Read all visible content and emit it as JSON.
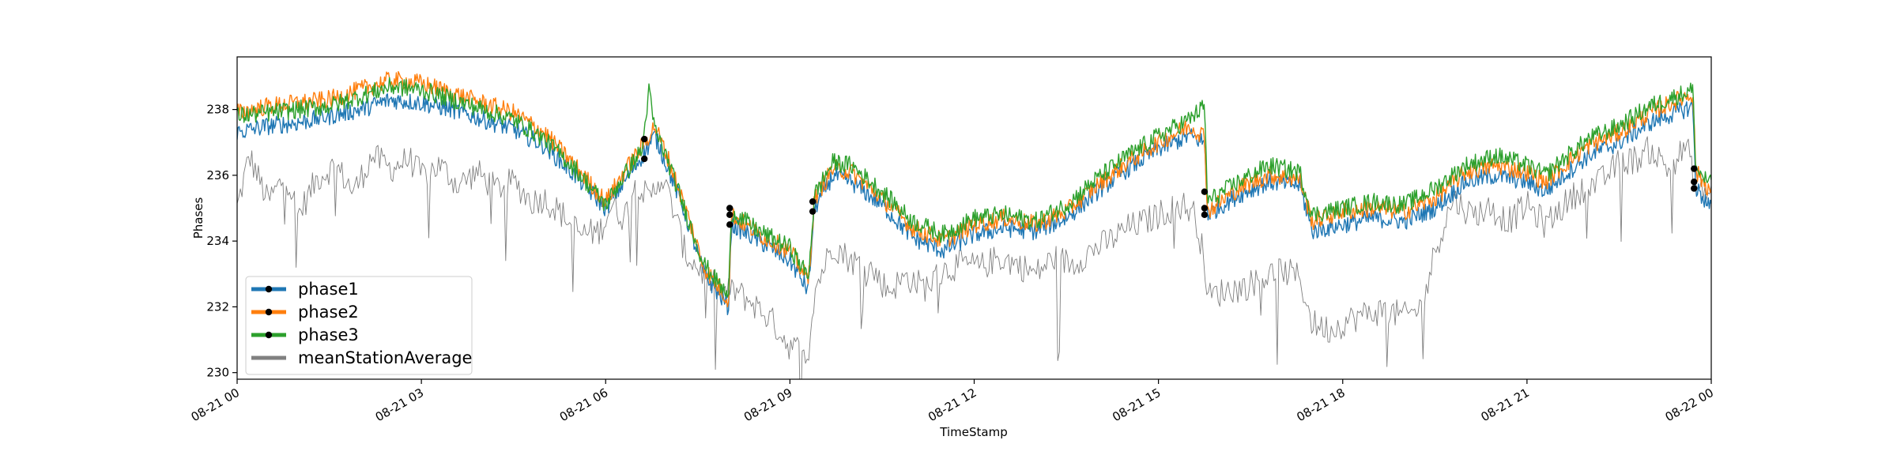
{
  "chart_data": {
    "type": "line",
    "xlabel": "TimeStamp",
    "ylabel": "Phases",
    "xlim": [
      "2023-08-21 00:00",
      "2023-08-22 00:00"
    ],
    "ylim": [
      229.8,
      239.6
    ],
    "grid": false,
    "legend_position": "lower-left",
    "x_ticks": [
      {
        "t": 0,
        "label": "08-21 00"
      },
      {
        "t": 3,
        "label": "08-21 03"
      },
      {
        "t": 6,
        "label": "08-21 06"
      },
      {
        "t": 9,
        "label": "08-21 09"
      },
      {
        "t": 12,
        "label": "08-21 12"
      },
      {
        "t": 15,
        "label": "08-21 15"
      },
      {
        "t": 18,
        "label": "08-21 18"
      },
      {
        "t": 21,
        "label": "08-21 21"
      },
      {
        "t": 24,
        "label": "08-22 00"
      }
    ],
    "y_ticks": [
      {
        "v": 230,
        "label": "230"
      },
      {
        "v": 232,
        "label": "232"
      },
      {
        "v": 234,
        "label": "234"
      },
      {
        "v": 236,
        "label": "236"
      },
      {
        "v": 238,
        "label": "238"
      }
    ],
    "x_unit_hours": "hours after 2023-08-21 00:00",
    "series": [
      {
        "name": "phase1",
        "color": "#1f77b4",
        "points": [
          [
            0,
            237.3
          ],
          [
            0.5,
            237.5
          ],
          [
            1,
            237.6
          ],
          [
            1.5,
            237.8
          ],
          [
            2,
            238.0
          ],
          [
            2.5,
            238.3
          ],
          [
            3,
            238.2
          ],
          [
            3.5,
            238.0
          ],
          [
            4,
            237.7
          ],
          [
            4.5,
            237.4
          ],
          [
            5,
            236.9
          ],
          [
            5.5,
            236.0
          ],
          [
            6,
            235.0
          ],
          [
            6.3,
            235.8
          ],
          [
            6.6,
            236.6
          ],
          [
            6.8,
            237.2
          ],
          [
            7,
            236.3
          ],
          [
            7.3,
            234.8
          ],
          [
            7.6,
            233.0
          ],
          [
            8,
            232.0
          ],
          [
            8.05,
            234.5
          ],
          [
            8.5,
            234.0
          ],
          [
            9,
            233.4
          ],
          [
            9.3,
            232.5
          ],
          [
            9.4,
            235.0
          ],
          [
            9.7,
            236.0
          ],
          [
            10,
            235.8
          ],
          [
            10.5,
            235.1
          ],
          [
            11,
            234.1
          ],
          [
            11.5,
            233.7
          ],
          [
            12,
            234.2
          ],
          [
            12.5,
            234.4
          ],
          [
            13,
            234.3
          ],
          [
            13.5,
            234.7
          ],
          [
            14,
            235.5
          ],
          [
            14.5,
            236.2
          ],
          [
            15,
            236.8
          ],
          [
            15.5,
            237.2
          ],
          [
            15.75,
            237.0
          ],
          [
            15.8,
            234.8
          ],
          [
            16.3,
            235.4
          ],
          [
            16.8,
            235.8
          ],
          [
            17.3,
            235.7
          ],
          [
            17.5,
            234.3
          ],
          [
            18,
            234.5
          ],
          [
            18.5,
            234.7
          ],
          [
            19,
            234.6
          ],
          [
            19.5,
            235.0
          ],
          [
            20,
            235.8
          ],
          [
            20.5,
            236.0
          ],
          [
            21,
            235.8
          ],
          [
            21.3,
            235.5
          ],
          [
            21.6,
            236.0
          ],
          [
            22,
            236.6
          ],
          [
            22.5,
            237.0
          ],
          [
            23,
            237.6
          ],
          [
            23.7,
            238.1
          ],
          [
            23.75,
            235.6
          ],
          [
            24,
            235.0
          ]
        ]
      },
      {
        "name": "phase2",
        "color": "#ff7f0e",
        "points": [
          [
            0,
            237.9
          ],
          [
            0.5,
            238.1
          ],
          [
            1,
            238.2
          ],
          [
            1.5,
            238.3
          ],
          [
            2,
            238.6
          ],
          [
            2.5,
            238.9
          ],
          [
            3,
            238.8
          ],
          [
            3.5,
            238.5
          ],
          [
            4,
            238.2
          ],
          [
            4.5,
            237.9
          ],
          [
            5,
            237.3
          ],
          [
            5.5,
            236.3
          ],
          [
            6,
            235.2
          ],
          [
            6.3,
            236.1
          ],
          [
            6.6,
            236.9
          ],
          [
            6.8,
            237.5
          ],
          [
            7,
            236.6
          ],
          [
            7.3,
            235.0
          ],
          [
            7.6,
            233.2
          ],
          [
            8,
            232.2
          ],
          [
            8.05,
            234.8
          ],
          [
            8.5,
            234.2
          ],
          [
            9,
            233.7
          ],
          [
            9.3,
            232.8
          ],
          [
            9.4,
            235.3
          ],
          [
            9.7,
            236.2
          ],
          [
            10,
            236.1
          ],
          [
            10.5,
            235.3
          ],
          [
            11,
            234.4
          ],
          [
            11.5,
            234.0
          ],
          [
            12,
            234.5
          ],
          [
            12.5,
            234.7
          ],
          [
            13,
            234.5
          ],
          [
            13.5,
            234.9
          ],
          [
            14,
            235.7
          ],
          [
            14.5,
            236.4
          ],
          [
            15,
            237.0
          ],
          [
            15.5,
            237.5
          ],
          [
            15.75,
            237.2
          ],
          [
            15.8,
            234.9
          ],
          [
            16.3,
            235.6
          ],
          [
            16.8,
            236.0
          ],
          [
            17.3,
            235.9
          ],
          [
            17.5,
            234.6
          ],
          [
            18,
            234.9
          ],
          [
            18.5,
            235.0
          ],
          [
            19,
            234.9
          ],
          [
            19.5,
            235.3
          ],
          [
            20,
            236.1
          ],
          [
            20.5,
            236.3
          ],
          [
            21,
            236.1
          ],
          [
            21.3,
            235.8
          ],
          [
            21.6,
            236.3
          ],
          [
            22,
            236.9
          ],
          [
            22.5,
            237.3
          ],
          [
            23,
            237.9
          ],
          [
            23.7,
            238.5
          ],
          [
            23.75,
            236.1
          ],
          [
            24,
            235.5
          ]
        ]
      },
      {
        "name": "phase3",
        "color": "#2ca02c",
        "points": [
          [
            0,
            237.8
          ],
          [
            0.5,
            237.9
          ],
          [
            1,
            238.0
          ],
          [
            1.5,
            238.1
          ],
          [
            2,
            238.4
          ],
          [
            2.5,
            238.7
          ],
          [
            3,
            238.6
          ],
          [
            3.5,
            238.3
          ],
          [
            4,
            238.0
          ],
          [
            4.5,
            237.7
          ],
          [
            5,
            237.1
          ],
          [
            5.5,
            236.2
          ],
          [
            6,
            235.1
          ],
          [
            6.3,
            236.0
          ],
          [
            6.6,
            236.8
          ],
          [
            6.7,
            238.6
          ],
          [
            6.8,
            237.4
          ],
          [
            7,
            236.5
          ],
          [
            7.3,
            234.9
          ],
          [
            7.6,
            233.3
          ],
          [
            8,
            232.3
          ],
          [
            8.05,
            234.9
          ],
          [
            8.5,
            234.3
          ],
          [
            9,
            233.8
          ],
          [
            9.3,
            232.9
          ],
          [
            9.4,
            235.4
          ],
          [
            9.7,
            236.4
          ],
          [
            10,
            236.3
          ],
          [
            10.5,
            235.5
          ],
          [
            11,
            234.6
          ],
          [
            11.5,
            234.2
          ],
          [
            12,
            234.7
          ],
          [
            12.5,
            234.8
          ],
          [
            13,
            234.6
          ],
          [
            13.5,
            235.1
          ],
          [
            14,
            235.9
          ],
          [
            14.5,
            236.6
          ],
          [
            15,
            237.2
          ],
          [
            15.5,
            237.7
          ],
          [
            15.75,
            238.1
          ],
          [
            15.8,
            235.2
          ],
          [
            16.3,
            235.8
          ],
          [
            16.8,
            236.3
          ],
          [
            17.3,
            236.1
          ],
          [
            17.5,
            234.8
          ],
          [
            18,
            235.0
          ],
          [
            18.5,
            235.2
          ],
          [
            19,
            235.1
          ],
          [
            19.5,
            235.6
          ],
          [
            20,
            236.3
          ],
          [
            20.5,
            236.6
          ],
          [
            21,
            236.3
          ],
          [
            21.3,
            236.0
          ],
          [
            21.6,
            236.5
          ],
          [
            22,
            237.1
          ],
          [
            22.5,
            237.5
          ],
          [
            23,
            238.1
          ],
          [
            23.7,
            238.6
          ],
          [
            23.75,
            236.2
          ],
          [
            24,
            235.7
          ]
        ]
      },
      {
        "name": "meanStationAverage",
        "color": "#808080",
        "points": [
          [
            0,
            235.0
          ],
          [
            0.2,
            236.6
          ],
          [
            0.5,
            235.2
          ],
          [
            0.8,
            236.0
          ],
          [
            1,
            234.8
          ],
          [
            1.3,
            235.9
          ],
          [
            1.6,
            236.3
          ],
          [
            1.9,
            235.5
          ],
          [
            2.2,
            236.6
          ],
          [
            2.5,
            236.2
          ],
          [
            2.8,
            236.5
          ],
          [
            3,
            236.0
          ],
          [
            3.3,
            236.3
          ],
          [
            3.6,
            235.7
          ],
          [
            3.9,
            236.1
          ],
          [
            4.2,
            235.6
          ],
          [
            4.5,
            235.8
          ],
          [
            4.8,
            235.2
          ],
          [
            5,
            235.3
          ],
          [
            5.3,
            234.8
          ],
          [
            5.6,
            234.2
          ],
          [
            5.9,
            234.3
          ],
          [
            6.1,
            235.1
          ],
          [
            6.3,
            234.7
          ],
          [
            6.5,
            235.9
          ],
          [
            6.7,
            235.2
          ],
          [
            6.9,
            236.0
          ],
          [
            7.1,
            235.0
          ],
          [
            7.3,
            233.6
          ],
          [
            7.6,
            233.0
          ],
          [
            7.9,
            232.4
          ],
          [
            8.1,
            232.5
          ],
          [
            8.4,
            232.1
          ],
          [
            8.7,
            231.6
          ],
          [
            9,
            230.8
          ],
          [
            9.3,
            230.6
          ],
          [
            9.4,
            232.5
          ],
          [
            9.7,
            233.9
          ],
          [
            10,
            233.4
          ],
          [
            10.3,
            233.2
          ],
          [
            10.6,
            232.5
          ],
          [
            10.9,
            232.9
          ],
          [
            11.2,
            232.6
          ],
          [
            11.5,
            233.1
          ],
          [
            11.8,
            233.3
          ],
          [
            12.1,
            233.2
          ],
          [
            12.4,
            233.5
          ],
          [
            12.7,
            233.3
          ],
          [
            13,
            233.0
          ],
          [
            13.3,
            233.5
          ],
          [
            13.6,
            233.3
          ],
          [
            13.9,
            233.7
          ],
          [
            14.2,
            234.0
          ],
          [
            14.5,
            234.4
          ],
          [
            14.8,
            234.6
          ],
          [
            15.1,
            234.9
          ],
          [
            15.4,
            235.1
          ],
          [
            15.6,
            234.8
          ],
          [
            15.75,
            233.4
          ],
          [
            15.8,
            232.3
          ],
          [
            16.1,
            232.5
          ],
          [
            16.4,
            232.6
          ],
          [
            16.7,
            232.9
          ],
          [
            17,
            233.1
          ],
          [
            17.3,
            232.9
          ],
          [
            17.5,
            231.5
          ],
          [
            17.8,
            231.3
          ],
          [
            18.1,
            231.6
          ],
          [
            18.4,
            231.8
          ],
          [
            18.7,
            231.9
          ],
          [
            19,
            231.7
          ],
          [
            19.3,
            232.0
          ],
          [
            19.5,
            233.7
          ],
          [
            19.8,
            235.3
          ],
          [
            20.1,
            234.8
          ],
          [
            20.4,
            235.0
          ],
          [
            20.7,
            234.6
          ],
          [
            21,
            235.1
          ],
          [
            21.3,
            234.5
          ],
          [
            21.6,
            235.1
          ],
          [
            21.9,
            235.6
          ],
          [
            22.2,
            235.8
          ],
          [
            22.5,
            236.4
          ],
          [
            22.8,
            236.5
          ],
          [
            23,
            236.8
          ],
          [
            23.3,
            236.2
          ],
          [
            23.6,
            236.9
          ],
          [
            23.75,
            235.6
          ],
          [
            24,
            235.4
          ]
        ]
      }
    ],
    "legend": [
      {
        "label": "phase1",
        "color": "#1f77b4",
        "marker": true
      },
      {
        "label": "phase2",
        "color": "#ff7f0e",
        "marker": true
      },
      {
        "label": "phase3",
        "color": "#2ca02c",
        "marker": true
      },
      {
        "label": "meanStationAverage",
        "color": "#808080",
        "marker": false
      }
    ],
    "markers": [
      {
        "x": 6.63,
        "y": 237.1
      },
      {
        "x": 6.63,
        "y": 236.5
      },
      {
        "x": 8.02,
        "y": 235.0
      },
      {
        "x": 8.02,
        "y": 234.8
      },
      {
        "x": 8.02,
        "y": 234.5
      },
      {
        "x": 9.37,
        "y": 235.2
      },
      {
        "x": 9.37,
        "y": 234.9
      },
      {
        "x": 15.75,
        "y": 235.5
      },
      {
        "x": 15.75,
        "y": 235.0
      },
      {
        "x": 15.75,
        "y": 234.8
      },
      {
        "x": 23.72,
        "y": 236.2
      },
      {
        "x": 23.72,
        "y": 235.8
      },
      {
        "x": 23.72,
        "y": 235.6
      }
    ]
  }
}
